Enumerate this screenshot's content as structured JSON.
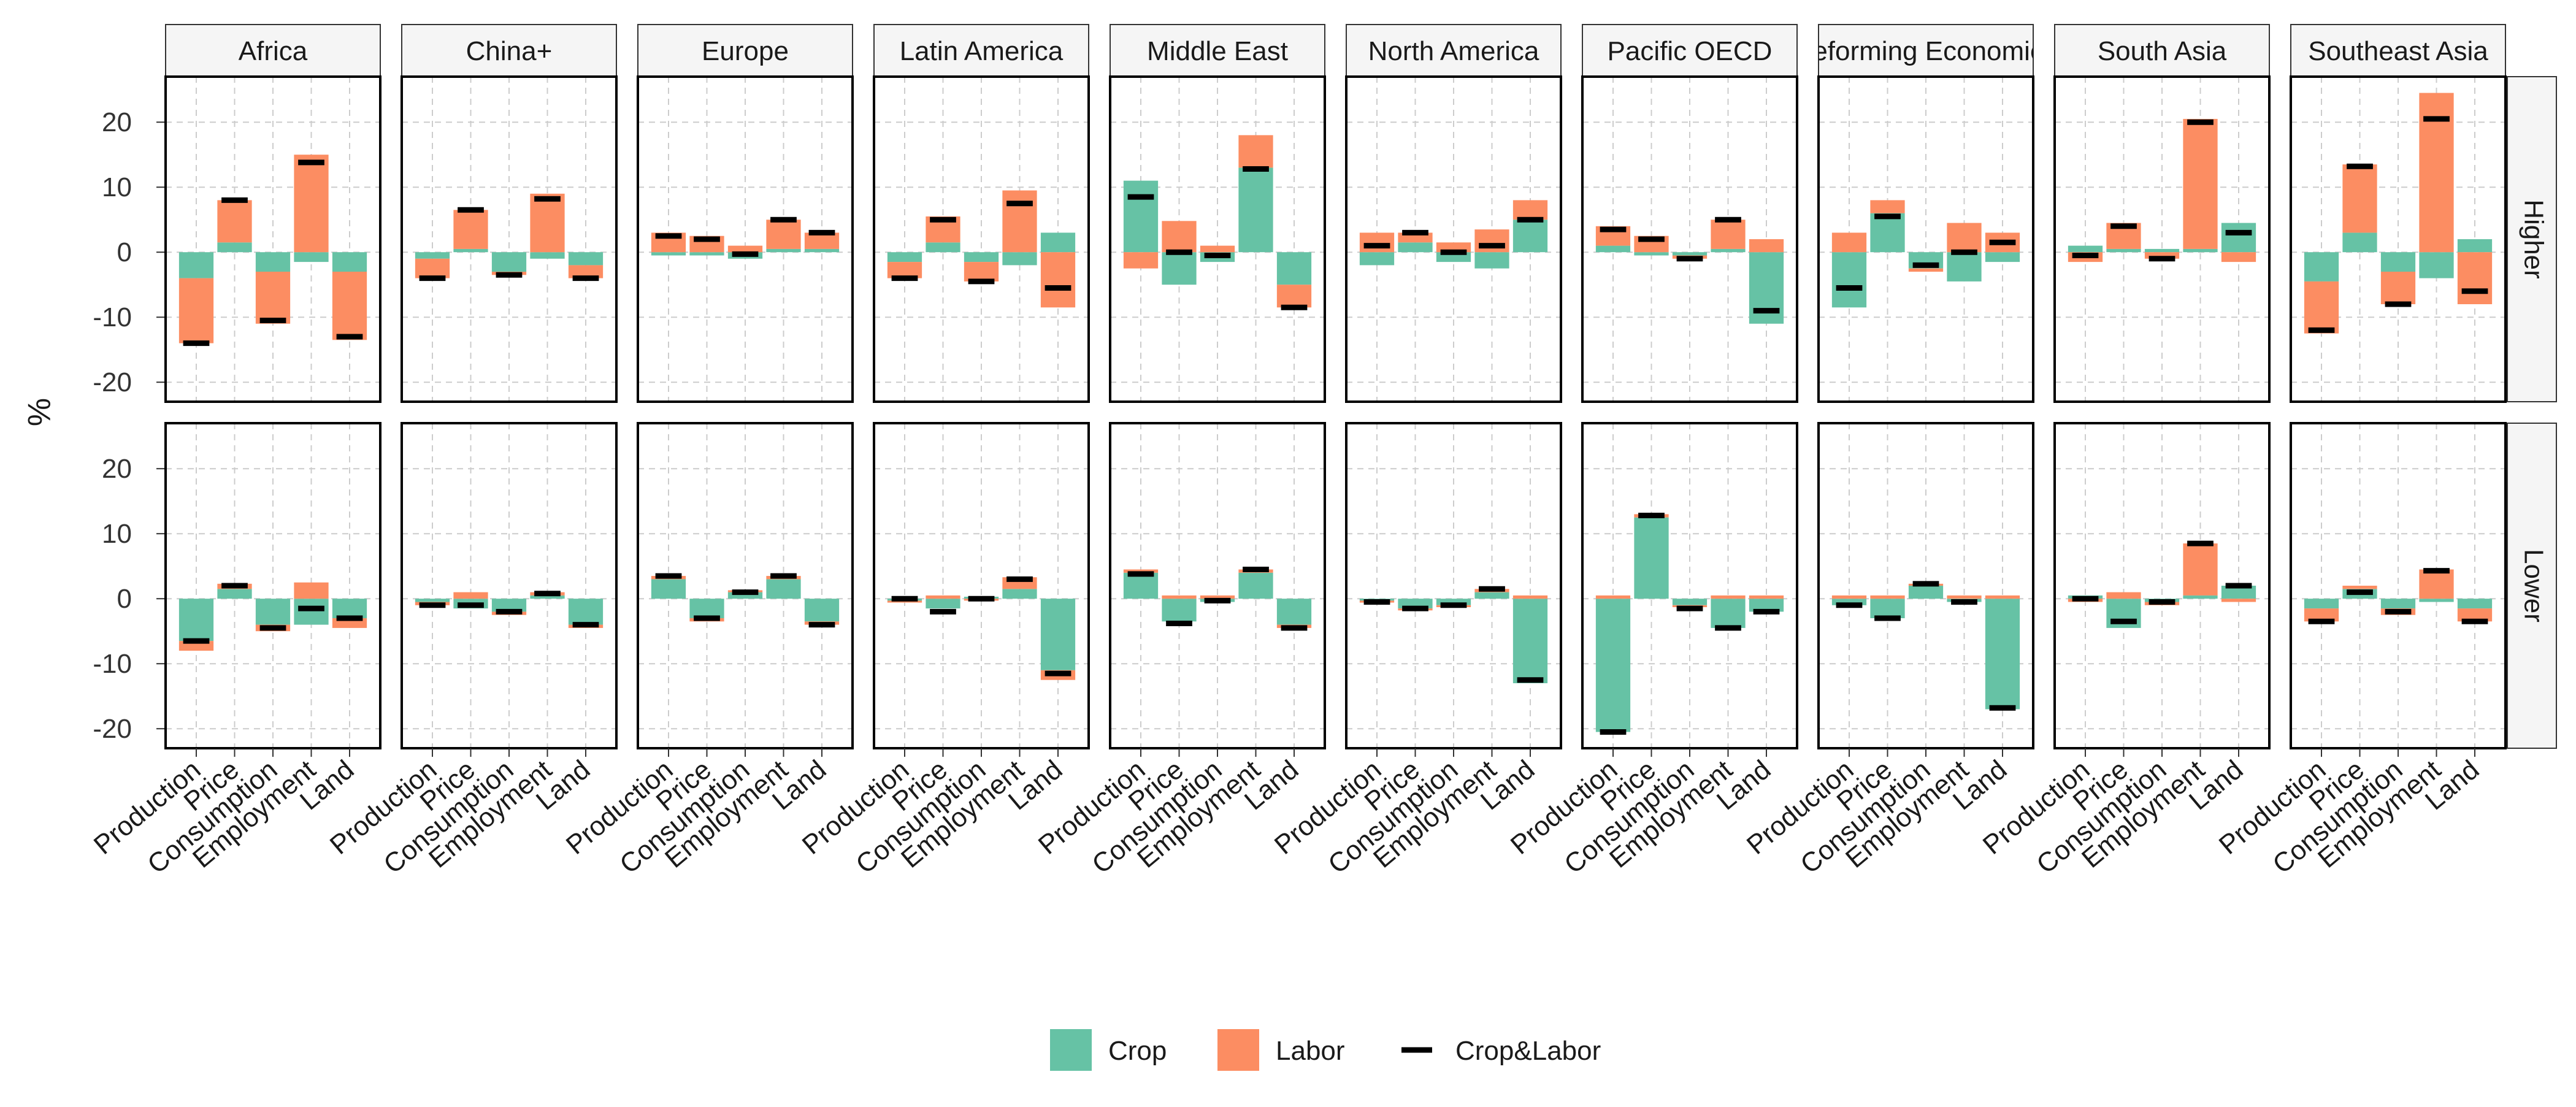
{
  "chart_data": {
    "type": "bar",
    "subtype": "faceted stacked bar with total marker",
    "ylabel": "%",
    "ylim": [
      -23,
      27
    ],
    "yticks": [
      -20,
      -10,
      0,
      10,
      20
    ],
    "grid": true,
    "categories": [
      "Production",
      "Price",
      "Consumption",
      "Employment",
      "Land"
    ],
    "regions": [
      "Africa",
      "China+",
      "Europe",
      "Latin America",
      "Middle East",
      "North America",
      "Pacific OECD",
      "Reforming Economies",
      "South Asia",
      "Southeast Asia"
    ],
    "scenarios": [
      "Higher",
      "Lower"
    ],
    "legend": {
      "position": "bottom",
      "items": [
        {
          "key": "crop",
          "label": "Crop",
          "kind": "fill",
          "color": "#66c2a5"
        },
        {
          "key": "labor",
          "label": "Labor",
          "kind": "fill",
          "color": "#fc8d62"
        },
        {
          "key": "total",
          "label": "Crop&Labor",
          "kind": "line",
          "color": "#000000"
        }
      ]
    },
    "panels": {
      "Higher": {
        "Africa": {
          "crop": [
            -4,
            1.5,
            -3,
            -1.5,
            -3
          ],
          "labor": [
            -10,
            6.5,
            -8,
            15,
            -10.5
          ],
          "total": [
            -14,
            8,
            -10.5,
            13.8,
            -13
          ]
        },
        "China+": {
          "crop": [
            -1,
            0.5,
            -3,
            -1,
            -2
          ],
          "labor": [
            -3,
            6,
            -0.5,
            9,
            -2
          ],
          "total": [
            -4,
            6.5,
            -3.5,
            8.2,
            -4
          ]
        },
        "Europe": {
          "crop": [
            -0.5,
            -0.5,
            -1,
            0.5,
            0.5
          ],
          "labor": [
            3,
            2.5,
            1,
            4.5,
            2.5
          ],
          "total": [
            2.5,
            2,
            -0.3,
            5,
            3
          ]
        },
        "Latin America": {
          "crop": [
            -1.5,
            1.5,
            -1.5,
            -2,
            3
          ],
          "labor": [
            -2.5,
            4,
            -3,
            9.5,
            -8.5
          ],
          "total": [
            -4,
            5,
            -4.5,
            7.5,
            -5.5
          ]
        },
        "Middle East": {
          "crop": [
            11,
            -5,
            -1.5,
            13,
            -5
          ],
          "labor": [
            -2.5,
            4.8,
            1,
            5,
            -3.5
          ],
          "total": [
            8.5,
            0,
            -0.5,
            12.8,
            -8.5
          ]
        },
        "North America": {
          "crop": [
            -2,
            1.5,
            -1.5,
            -2.5,
            5
          ],
          "labor": [
            3,
            1.5,
            1.5,
            3.5,
            3
          ],
          "total": [
            1,
            3,
            0,
            1,
            5
          ]
        },
        "Pacific OECD": {
          "crop": [
            1,
            -0.5,
            -0.5,
            0.5,
            -11
          ],
          "labor": [
            3,
            2.5,
            -0.5,
            4.5,
            2
          ],
          "total": [
            3.5,
            2,
            -1,
            5,
            -9
          ]
        },
        "Reforming Economies": {
          "crop": [
            -8.5,
            6,
            -2.5,
            -4.5,
            -1.5
          ],
          "labor": [
            3,
            2,
            -0.5,
            4.5,
            3
          ],
          "total": [
            -5.5,
            5.5,
            -2,
            0,
            1.5
          ]
        },
        "South Asia": {
          "crop": [
            1,
            0.5,
            0.5,
            0.5,
            4.5
          ],
          "labor": [
            -1.5,
            4,
            -1,
            20,
            -1.5
          ],
          "total": [
            -0.5,
            4,
            -1,
            20,
            3
          ]
        },
        "Southeast Asia": {
          "crop": [
            -4.5,
            3,
            -3,
            -4,
            2
          ],
          "labor": [
            -8,
            10.5,
            -5,
            24.5,
            -8
          ],
          "total": [
            -12,
            13.2,
            -8,
            20.5,
            -6
          ]
        }
      },
      "Lower": {
        "Africa": {
          "crop": [
            -6.5,
            1.5,
            -4,
            -4,
            -3
          ],
          "labor": [
            -1.5,
            0.8,
            -1,
            2.5,
            -1.5
          ],
          "total": [
            -6.5,
            2,
            -4.5,
            -1.5,
            -3
          ]
        },
        "China+": {
          "crop": [
            -0.5,
            -1.5,
            -2,
            0.5,
            -4
          ],
          "labor": [
            -0.5,
            1,
            -0.5,
            0.5,
            -0.5
          ],
          "total": [
            -1,
            -1,
            -2,
            0.8,
            -4
          ]
        },
        "Europe": {
          "crop": [
            3,
            -3,
            1,
            3,
            -3.5
          ],
          "labor": [
            0.5,
            -0.5,
            0.3,
            0.5,
            -0.5
          ],
          "total": [
            3.5,
            -3,
            1,
            3.5,
            -4
          ]
        },
        "Latin America": {
          "crop": [
            -0.3,
            -1.5,
            0.3,
            1.5,
            -11
          ],
          "labor": [
            -0.3,
            0.5,
            -0.3,
            1.8,
            -1.5
          ],
          "total": [
            0,
            -2,
            0,
            3,
            -11.5
          ]
        },
        "Middle East": {
          "crop": [
            4,
            -3.5,
            -0.5,
            4,
            -4
          ],
          "labor": [
            0.5,
            0.5,
            0.5,
            0.5,
            -0.5
          ],
          "total": [
            3.8,
            -3.8,
            -0.3,
            4.5,
            -4.5
          ]
        },
        "North America": {
          "crop": [
            -0.3,
            -1.5,
            -1,
            1,
            -13
          ],
          "labor": [
            -0.3,
            -0.3,
            -0.3,
            0.5,
            0.5
          ],
          "total": [
            -0.5,
            -1.5,
            -1,
            1.5,
            -12.5
          ]
        },
        "Pacific OECD": {
          "crop": [
            -20.5,
            12.5,
            -1,
            -4.5,
            -2
          ],
          "labor": [
            0.5,
            0.5,
            -0.3,
            0.5,
            0.5
          ],
          "total": [
            -20.5,
            12.8,
            -1.5,
            -4.5,
            -2
          ]
        },
        "Reforming Economies": {
          "crop": [
            -1,
            -3,
            2,
            -0.5,
            -17
          ],
          "labor": [
            0.5,
            0.5,
            0.3,
            0.5,
            0.5
          ],
          "total": [
            -1,
            -3,
            2.3,
            -0.5,
            -16.8
          ]
        },
        "South Asia": {
          "crop": [
            0.5,
            -4.5,
            -0.5,
            0.5,
            2
          ],
          "labor": [
            -0.5,
            1,
            -0.5,
            8,
            -0.5
          ],
          "total": [
            0,
            -3.5,
            -0.5,
            8.5,
            2
          ]
        },
        "Southeast Asia": {
          "crop": [
            -1.5,
            1.5,
            -1.5,
            -0.5,
            -1.5
          ],
          "labor": [
            -2,
            0.5,
            -1,
            4.5,
            -2
          ],
          "total": [
            -3.5,
            1,
            -2,
            4.3,
            -3.5
          ]
        }
      }
    }
  }
}
